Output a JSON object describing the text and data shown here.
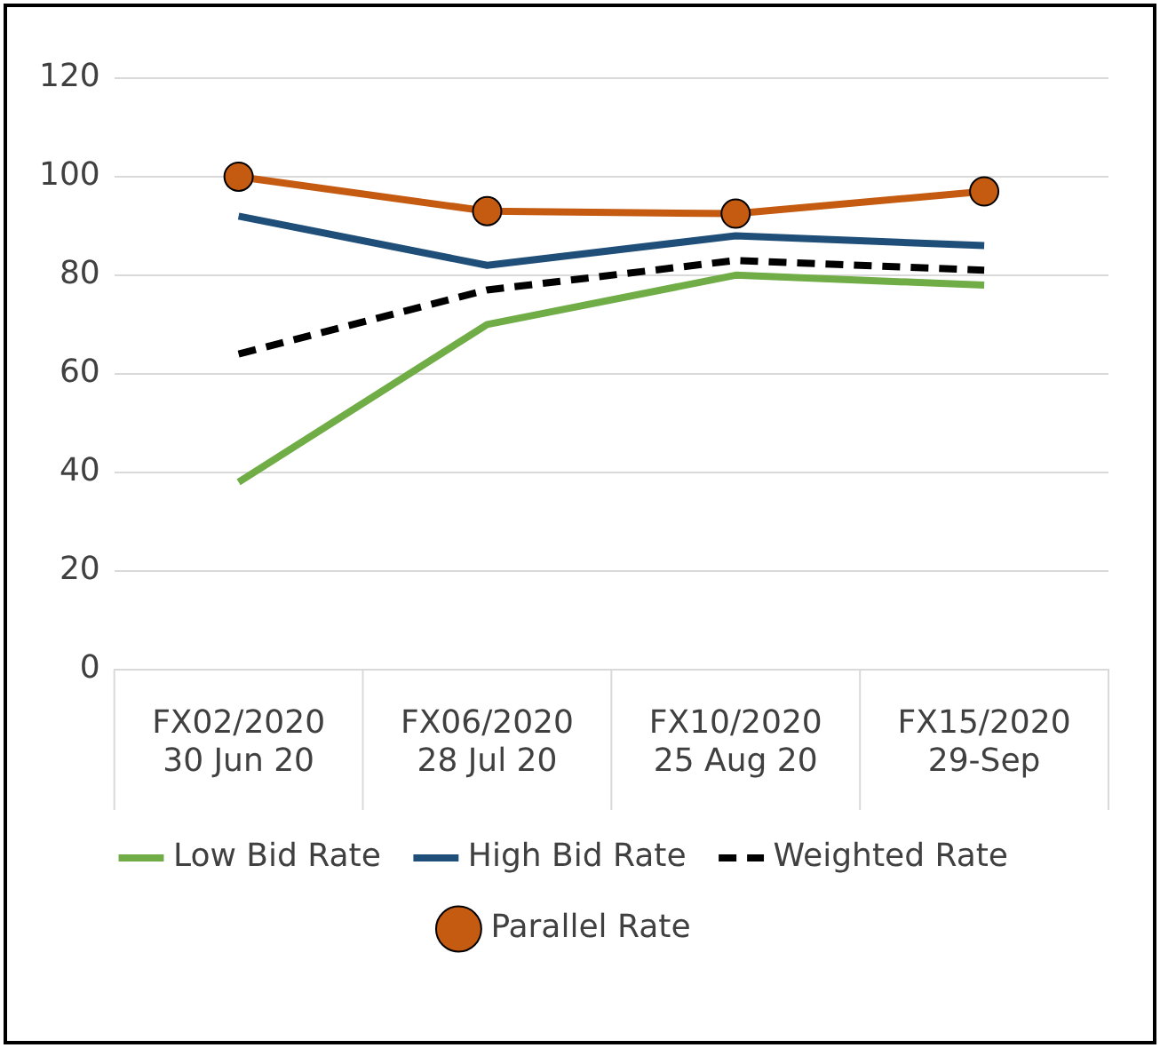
{
  "chart_data": {
    "type": "line",
    "categories": [
      "FX02/2020\n30 Jun 20",
      "FX06/2020\n28 Jul 20",
      "FX10/2020\n25 Aug 20",
      "FX15/2020\n29-Sep"
    ],
    "series": [
      {
        "name": "Low Bid Rate",
        "color": "#70ad47",
        "values": [
          38,
          70,
          80,
          78
        ]
      },
      {
        "name": "High Bid Rate",
        "color": "#1f4e79",
        "values": [
          92,
          82,
          88,
          86
        ]
      },
      {
        "name": "Weighted Rate",
        "color": "#000000",
        "values": [
          64,
          77,
          83,
          81
        ],
        "line_style": "dashed"
      },
      {
        "name": "Parallel Rate",
        "color": "#c55a11",
        "values": [
          100,
          93,
          92.5,
          97
        ],
        "marker": "circle"
      }
    ],
    "ylim": [
      0,
      120
    ],
    "yticks": [
      0,
      20,
      40,
      60,
      80,
      100,
      120
    ],
    "grid": "y",
    "legend": "bottom",
    "marker": "none",
    "line_style": "solid"
  }
}
